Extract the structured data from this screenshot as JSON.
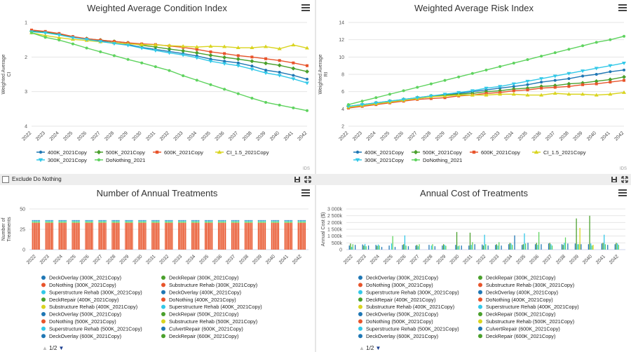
{
  "controls": {
    "exclude_label": "Exclude Do Nothing",
    "credit": "IDS",
    "pager": "1/2"
  },
  "charts": [
    {
      "id": "ci",
      "type": "line",
      "title": "Weighted Average Condition Index",
      "ylabel": "Weighted Average CI",
      "ylim": [
        1,
        4
      ],
      "reversed": true,
      "yticks": [
        "1",
        "2",
        "3",
        "4"
      ],
      "x": [
        "2022",
        "2023",
        "2024",
        "2025",
        "2026",
        "2027",
        "2028",
        "2029",
        "2030",
        "2031",
        "2032",
        "2033",
        "2034",
        "2035",
        "2036",
        "2037",
        "2038",
        "2039",
        "2040",
        "2041",
        "2042"
      ],
      "series": [
        {
          "name": "400K_2021Copy",
          "color": "#1f77b4",
          "marker": "circle",
          "values": [
            1.25,
            1.28,
            1.33,
            1.42,
            1.48,
            1.53,
            1.59,
            1.64,
            1.72,
            1.78,
            1.84,
            1.9,
            1.97,
            2.06,
            2.12,
            2.17,
            2.26,
            2.38,
            2.44,
            2.53,
            2.64
          ]
        },
        {
          "name": "500K_2021Copy",
          "color": "#4aa02c",
          "marker": "diamond",
          "values": [
            1.26,
            1.29,
            1.34,
            1.42,
            1.47,
            1.51,
            1.55,
            1.59,
            1.66,
            1.71,
            1.77,
            1.82,
            1.88,
            1.95,
            2.01,
            2.06,
            2.12,
            2.18,
            2.24,
            2.33,
            2.42
          ]
        },
        {
          "name": "600K_2021Copy",
          "color": "#e8542b",
          "marker": "square",
          "values": [
            1.22,
            1.26,
            1.32,
            1.41,
            1.47,
            1.51,
            1.55,
            1.59,
            1.62,
            1.64,
            1.68,
            1.72,
            1.78,
            1.85,
            1.9,
            1.96,
            2.0,
            2.05,
            2.1,
            2.17,
            2.25
          ]
        },
        {
          "name": "CI_1.5_2021Copy",
          "color": "#d9d41f",
          "marker": "triangle",
          "values": [
            1.3,
            1.38,
            1.44,
            1.49,
            1.52,
            1.56,
            1.59,
            1.62,
            1.64,
            1.65,
            1.67,
            1.69,
            1.71,
            1.69,
            1.7,
            1.73,
            1.73,
            1.7,
            1.76,
            1.65,
            1.74
          ]
        },
        {
          "name": "300K_2021Copy",
          "color": "#32c8e8",
          "marker": "triangle-down",
          "values": [
            1.27,
            1.3,
            1.36,
            1.44,
            1.49,
            1.55,
            1.61,
            1.66,
            1.74,
            1.81,
            1.88,
            1.94,
            2.02,
            2.12,
            2.19,
            2.25,
            2.35,
            2.46,
            2.53,
            2.63,
            2.75
          ]
        },
        {
          "name": "DoNothing_2021",
          "color": "#5fd35f",
          "marker": "circle",
          "values": [
            1.3,
            1.43,
            1.51,
            1.62,
            1.74,
            1.85,
            1.96,
            2.07,
            2.17,
            2.28,
            2.39,
            2.54,
            2.67,
            2.8,
            2.93,
            3.06,
            3.19,
            3.31,
            3.39,
            3.47,
            3.55
          ]
        }
      ]
    },
    {
      "id": "ri",
      "type": "line",
      "title": "Weighted Average Risk Index",
      "ylabel": "Weighted Average RI",
      "ylim": [
        2,
        14
      ],
      "reversed": false,
      "yticks": [
        "2",
        "4",
        "6",
        "8",
        "10",
        "12",
        "14"
      ],
      "x": [
        "2022",
        "2023",
        "2024",
        "2025",
        "2026",
        "2027",
        "2028",
        "2029",
        "2030",
        "2031",
        "2032",
        "2033",
        "2034",
        "2035",
        "2036",
        "2037",
        "2038",
        "2039",
        "2040",
        "2041",
        "2042"
      ],
      "series": [
        {
          "name": "400K_2021Copy",
          "color": "#1f77b4",
          "marker": "circle",
          "values": [
            4.2,
            4.4,
            4.6,
            4.8,
            5.0,
            5.2,
            5.4,
            5.6,
            5.8,
            6.0,
            6.2,
            6.4,
            6.6,
            6.8,
            7.1,
            7.3,
            7.5,
            7.8,
            8.0,
            8.3,
            8.5
          ]
        },
        {
          "name": "500K_2021Copy",
          "color": "#4aa02c",
          "marker": "diamond",
          "values": [
            4.3,
            4.5,
            4.7,
            4.9,
            5.1,
            5.3,
            5.5,
            5.6,
            5.7,
            5.8,
            6.0,
            6.1,
            6.3,
            6.4,
            6.6,
            6.7,
            6.9,
            7.0,
            7.2,
            7.4,
            7.7
          ]
        },
        {
          "name": "600K_2021Copy",
          "color": "#e8542b",
          "marker": "square",
          "values": [
            4.1,
            4.3,
            4.5,
            4.7,
            4.9,
            5.1,
            5.2,
            5.3,
            5.5,
            5.6,
            5.8,
            5.9,
            6.1,
            6.2,
            6.4,
            6.5,
            6.6,
            6.8,
            6.9,
            7.1,
            7.3
          ]
        },
        {
          "name": "CI_1.5_2021Copy",
          "color": "#d9d41f",
          "marker": "triangle",
          "values": [
            4.2,
            4.4,
            4.6,
            4.8,
            5.0,
            5.2,
            5.4,
            5.5,
            5.6,
            5.6,
            5.6,
            5.7,
            5.7,
            5.6,
            5.6,
            5.8,
            5.7,
            5.7,
            5.6,
            5.7,
            5.9
          ]
        },
        {
          "name": "300K_2021Copy",
          "color": "#32c8e8",
          "marker": "triangle-down",
          "values": [
            4.3,
            4.5,
            4.7,
            4.9,
            5.1,
            5.3,
            5.5,
            5.7,
            5.9,
            6.1,
            6.4,
            6.6,
            6.9,
            7.2,
            7.5,
            7.8,
            8.1,
            8.4,
            8.7,
            9.0,
            9.3
          ]
        },
        {
          "name": "DoNothing_2021",
          "color": "#5fd35f",
          "marker": "circle",
          "values": [
            4.5,
            4.9,
            5.3,
            5.7,
            6.1,
            6.5,
            6.9,
            7.3,
            7.7,
            8.1,
            8.5,
            8.9,
            9.3,
            9.7,
            10.1,
            10.5,
            10.9,
            11.3,
            11.7,
            12.0,
            12.4
          ]
        }
      ]
    },
    {
      "id": "nt",
      "type": "bar",
      "title": "Number of Annual Treatments",
      "ylabel": "Number of Treatments",
      "ylim": [
        0,
        50
      ],
      "yticks": [
        "0",
        "25",
        "50"
      ],
      "x": [
        "2022",
        "2023",
        "2024",
        "2025",
        "2026",
        "2027",
        "2028",
        "2029",
        "2030",
        "2031",
        "2032",
        "2033",
        "2034",
        "2035",
        "2036",
        "2037",
        "2038",
        "2039",
        "2040",
        "2041",
        "2042"
      ],
      "bars_per_group": 7,
      "stack_colors": [
        "#e8542b",
        "#5fd35f",
        "#32c8e8",
        "#1f77b4"
      ],
      "stack_values": [
        33,
        1.5,
        1.0,
        0.8
      ],
      "legend_page": "1/2",
      "legend": [
        {
          "name": "DeckOverlay (300K_2021Copy)",
          "color": "#1f77b4"
        },
        {
          "name": "DeckRepair (300K_2021Copy)",
          "color": "#4aa02c"
        },
        {
          "name": "DoNothing (300K_2021Copy)",
          "color": "#e8542b"
        },
        {
          "name": "Substructure Rehab (300K_2021Copy)",
          "color": "#e8542b"
        },
        {
          "name": "Superstructure Rehab (300K_2021Copy)",
          "color": "#32c8e8"
        },
        {
          "name": "DeckOverlay (400K_2021Copy)",
          "color": "#1f77b4"
        },
        {
          "name": "DeckRepair (400K_2021Copy)",
          "color": "#4aa02c"
        },
        {
          "name": "DoNothing (400K_2021Copy)",
          "color": "#e8542b"
        },
        {
          "name": "Substructure Rehab (400K_2021Copy)",
          "color": "#d9d41f"
        },
        {
          "name": "Superstructure Rehab (400K_2021Copy)",
          "color": "#32c8e8"
        },
        {
          "name": "DeckOverlay (500K_2021Copy)",
          "color": "#1f77b4"
        },
        {
          "name": "DeckRepair (500K_2021Copy)",
          "color": "#4aa02c"
        },
        {
          "name": "DoNothing (500K_2021Copy)",
          "color": "#e8542b"
        },
        {
          "name": "Substructure Rehab (500K_2021Copy)",
          "color": "#d9d41f"
        },
        {
          "name": "Superstructure Rehab (500K_2021Copy)",
          "color": "#32c8e8"
        },
        {
          "name": "CulvertRepair (600K_2021Copy)",
          "color": "#1f77b4"
        },
        {
          "name": "DeckOverlay (600K_2021Copy)",
          "color": "#1f77b4"
        },
        {
          "name": "DeckRepair (600K_2021Copy)",
          "color": "#4aa02c"
        }
      ]
    },
    {
      "id": "ac",
      "type": "bar",
      "title": "Annual Cost of Treatments",
      "ylabel": "Annual Cost ($)",
      "ylim": [
        0,
        3000
      ],
      "yticks": [
        "0",
        "500k",
        "1 000k",
        "1 500k",
        "2 000k",
        "2 500k",
        "3 000k"
      ],
      "x": [
        "2022",
        "2023",
        "2024",
        "2025",
        "2026",
        "2027",
        "2028",
        "2029",
        "2030",
        "2031",
        "2032",
        "2033",
        "2034",
        "2035",
        "2036",
        "2037",
        "2038",
        "2039",
        "2040",
        "2041",
        "2042"
      ],
      "bars_per_group": 7,
      "bar_colors": [
        "#1f77b4",
        "#4aa02c",
        "#32c8e8",
        "#5fd35f",
        "#d9d41f",
        "#1f77b4",
        "#4aa02c"
      ],
      "group_values": [
        [
          300,
          450,
          200,
          400,
          0,
          350,
          0
        ],
        [
          380,
          300,
          420,
          250,
          0,
          300,
          0
        ],
        [
          350,
          280,
          380,
          300,
          0,
          200,
          0
        ],
        [
          300,
          0,
          450,
          1000,
          0,
          200,
          0
        ],
        [
          350,
          400,
          1050,
          300,
          0,
          250,
          0
        ],
        [
          300,
          350,
          250,
          400,
          0,
          0,
          0
        ],
        [
          350,
          0,
          300,
          400,
          0,
          250,
          0
        ],
        [
          300,
          400,
          350,
          280,
          0,
          0,
          0
        ],
        [
          350,
          1300,
          250,
          300,
          0,
          300,
          0
        ],
        [
          300,
          1250,
          350,
          550,
          0,
          400,
          0
        ],
        [
          380,
          300,
          1100,
          400,
          0,
          300,
          0
        ],
        [
          350,
          400,
          300,
          550,
          0,
          300,
          0
        ],
        [
          400,
          500,
          450,
          350,
          0,
          1050,
          0
        ],
        [
          350,
          400,
          1200,
          450,
          0,
          500,
          0
        ],
        [
          400,
          500,
          350,
          1300,
          0,
          400,
          0
        ],
        [
          450,
          500,
          400,
          300,
          0,
          0,
          0
        ],
        [
          400,
          350,
          500,
          900,
          0,
          450,
          0
        ],
        [
          450,
          2300,
          400,
          400,
          1600,
          400,
          0
        ],
        [
          400,
          2500,
          450,
          300,
          350,
          0,
          0
        ],
        [
          450,
          500,
          1100,
          400,
          0,
          350,
          0
        ],
        [
          400,
          500,
          450,
          350,
          0,
          0,
          0
        ]
      ],
      "legend_page": "1/2",
      "legend": [
        {
          "name": "DeckOverlay (300K_2021Copy)",
          "color": "#1f77b4"
        },
        {
          "name": "DeckRepair (300K_2021Copy)",
          "color": "#4aa02c"
        },
        {
          "name": "DoNothing (300K_2021Copy)",
          "color": "#e8542b"
        },
        {
          "name": "Substructure Rehab (300K_2021Copy)",
          "color": "#e8542b"
        },
        {
          "name": "Superstructure Rehab (300K_2021Copy)",
          "color": "#32c8e8"
        },
        {
          "name": "DeckOverlay (400K_2021Copy)",
          "color": "#1f77b4"
        },
        {
          "name": "DeckRepair (400K_2021Copy)",
          "color": "#4aa02c"
        },
        {
          "name": "DoNothing (400K_2021Copy)",
          "color": "#e8542b"
        },
        {
          "name": "Substructure Rehab (400K_2021Copy)",
          "color": "#d9d41f"
        },
        {
          "name": "Superstructure Rehab (400K_2021Copy)",
          "color": "#32c8e8"
        },
        {
          "name": "DeckOverlay (500K_2021Copy)",
          "color": "#1f77b4"
        },
        {
          "name": "DeckRepair (500K_2021Copy)",
          "color": "#4aa02c"
        },
        {
          "name": "DoNothing (500K_2021Copy)",
          "color": "#e8542b"
        },
        {
          "name": "Substructure Rehab (500K_2021Copy)",
          "color": "#d9d41f"
        },
        {
          "name": "Superstructure Rehab (500K_2021Copy)",
          "color": "#32c8e8"
        },
        {
          "name": "CulvertRepair (600K_2021Copy)",
          "color": "#1f77b4"
        },
        {
          "name": "DeckOverlay (600K_2021Copy)",
          "color": "#1f77b4"
        },
        {
          "name": "DeckRepair (600K_2021Copy)",
          "color": "#4aa02c"
        }
      ]
    }
  ]
}
